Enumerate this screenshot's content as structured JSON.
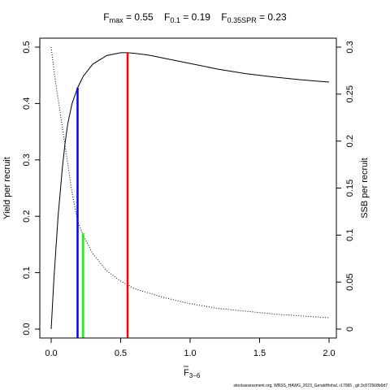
{
  "header": {
    "fmax": {
      "sym": "F",
      "sub": "max",
      "eq": " = ",
      "val": "0.55"
    },
    "f01": {
      "sym": "F",
      "sub": "0.1",
      "eq": " = ",
      "val": "0.19"
    },
    "fspr": {
      "sym": "F",
      "sub": "0.35SPR",
      "eq": " = ",
      "val": "0.23"
    }
  },
  "footer": {
    "source": "stockassessment.org, WBSS_HAWG_2023_GeraldHohal, r17065 , git:3c872568b0d7"
  },
  "chart_data": {
    "type": "line",
    "xlabel": "F",
    "xlabel_sub": "3−6",
    "ylabel": "Yield per recruit",
    "y2label": "SSB per recruit",
    "xlim": [
      0,
      2
    ],
    "ylim": [
      0,
      0.5
    ],
    "y2lim": [
      0,
      0.3
    ],
    "x_ticks": [
      "0.0",
      "0.5",
      "1.0",
      "1.5",
      "2.0"
    ],
    "y_ticks": [
      "0.0",
      "0.1",
      "0.2",
      "0.3",
      "0.4",
      "0.5"
    ],
    "y2_ticks": [
      "0",
      "0.05",
      "0.1",
      "0.15",
      "0.2",
      "0.25",
      "0.3"
    ],
    "series": [
      {
        "axis": "left",
        "style": "solid",
        "x": [
          0,
          0.02,
          0.05,
          0.08,
          0.1,
          0.12,
          0.15,
          0.19,
          0.23,
          0.3,
          0.4,
          0.5,
          0.55,
          0.6,
          0.7,
          0.8,
          1.0,
          1.2,
          1.4,
          1.6,
          1.8,
          2.0
        ],
        "y": [
          0,
          0.09,
          0.2,
          0.285,
          0.33,
          0.365,
          0.4,
          0.428,
          0.448,
          0.47,
          0.485,
          0.49,
          0.49,
          0.489,
          0.486,
          0.481,
          0.471,
          0.461,
          0.453,
          0.447,
          0.442,
          0.438
        ]
      },
      {
        "axis": "right",
        "style": "dotted",
        "x": [
          0,
          0.02,
          0.05,
          0.08,
          0.1,
          0.15,
          0.19,
          0.23,
          0.3,
          0.4,
          0.5,
          0.55,
          0.6,
          0.8,
          1.0,
          1.2,
          1.4,
          1.6,
          1.8,
          2.0
        ],
        "y": [
          0.3,
          0.275,
          0.245,
          0.215,
          0.195,
          0.145,
          0.115,
          0.1,
          0.08,
          0.062,
          0.051,
          0.047,
          0.043,
          0.034,
          0.027,
          0.022,
          0.019,
          0.016,
          0.014,
          0.012
        ]
      }
    ],
    "reference_lines": [
      {
        "label": "F0.1",
        "x": 0.19,
        "y": 0.428,
        "color": "#0000ff"
      },
      {
        "label": "F0.35SPR",
        "x": 0.23,
        "y": 0.17,
        "color": "#00ff00"
      },
      {
        "label": "Fmax",
        "x": 0.55,
        "y": 0.49,
        "color": "#ff0000"
      }
    ],
    "grid": false,
    "legend": "none"
  }
}
